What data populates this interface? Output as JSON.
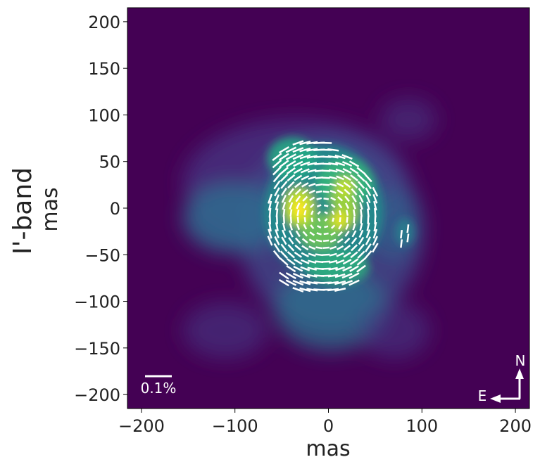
{
  "chart_data": {
    "type": "heatmap",
    "row_label": "I'-band",
    "xlabel": "mas",
    "ylabel": "mas",
    "xlim": [
      -215,
      215
    ],
    "ylim": [
      -215,
      215
    ],
    "x_ticks": [
      -200,
      -100,
      0,
      100,
      200
    ],
    "x_tick_labels": [
      "−200",
      "−100",
      "0",
      "100",
      "200"
    ],
    "y_ticks": [
      200,
      150,
      100,
      50,
      0,
      -50,
      -100,
      -150,
      -200
    ],
    "y_tick_labels": [
      "200",
      "150",
      "100",
      "50",
      "0",
      "−50",
      "−100",
      "−150",
      "−200"
    ],
    "colormap": "viridis",
    "background_color": "#440154",
    "intensity_peaks": [
      {
        "x": -30,
        "y": 0,
        "level": 1.0
      },
      {
        "x": 15,
        "y": -15,
        "level": 0.95
      },
      {
        "x": 20,
        "y": 20,
        "level": 0.85
      },
      {
        "x": -10,
        "y": -30,
        "level": 0.75
      },
      {
        "x": -30,
        "y": 40,
        "level": 0.7
      }
    ],
    "polarization_vectors": {
      "color": "#ffffff",
      "scale_bar_label": "0.1%"
    },
    "compass": {
      "north_label": "N",
      "east_label": "E"
    }
  }
}
